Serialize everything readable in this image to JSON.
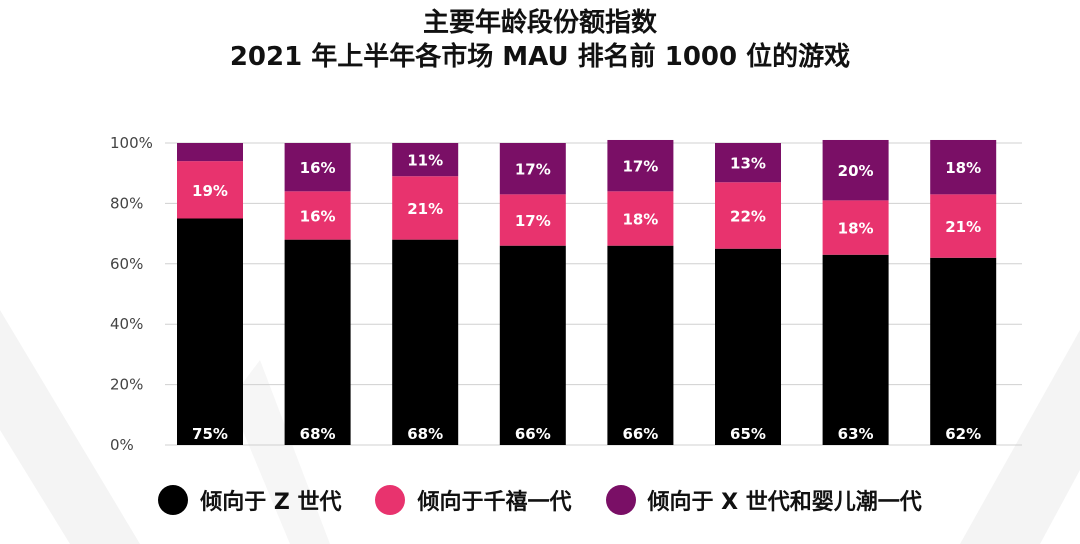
{
  "colors": {
    "gen_z": "#000000",
    "millennials": "#e8336e",
    "gen_x_boomers": "#7a0f66",
    "grid": "#d0d0d0",
    "bar_label": "#ffffff"
  },
  "chart_data": {
    "type": "bar",
    "stacked": true,
    "title": "主要年龄段份额指数",
    "subtitle": "2021 年上半年各市场 MAU 排名前 1000 位的游戏",
    "categories": [
      "",
      "",
      "",
      "",
      "",
      "",
      "",
      ""
    ],
    "ylim": [
      0,
      100
    ],
    "yticks": [
      "0%",
      "20%",
      "40%",
      "60%",
      "80%",
      "100%"
    ],
    "grid": true,
    "legend_position": "bottom",
    "series": [
      {
        "name": "倾向于 Z 世代",
        "key": "gen_z",
        "values": [
          75,
          68,
          68,
          66,
          66,
          65,
          63,
          62
        ],
        "labels": [
          "75%",
          "68%",
          "68%",
          "66%",
          "66%",
          "65%",
          "63%",
          "62%"
        ]
      },
      {
        "name": "倾向于千禧一代",
        "key": "millennials",
        "values": [
          19,
          16,
          21,
          17,
          18,
          22,
          18,
          21
        ],
        "labels": [
          "19%",
          "16%",
          "21%",
          "17%",
          "18%",
          "22%",
          "18%",
          "21%"
        ]
      },
      {
        "name": "倾向于 X 世代和婴儿潮一代",
        "key": "gen_x_boomers",
        "values": [
          6,
          16,
          11,
          17,
          17,
          13,
          20,
          18
        ],
        "labels": [
          "",
          "16%",
          "11%",
          "17%",
          "17%",
          "13%",
          "20%",
          "18%"
        ]
      }
    ]
  }
}
